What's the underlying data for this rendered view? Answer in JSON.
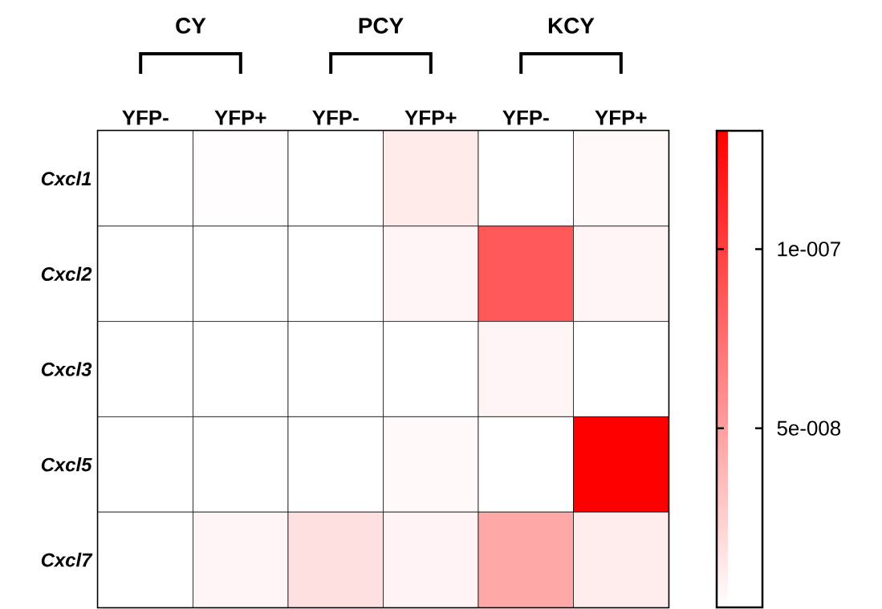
{
  "chart_data": {
    "type": "heatmap",
    "annotations": [
      "CY",
      "PCY",
      "KCY"
    ],
    "categories": [
      "YFP-",
      "YFP+",
      "YFP-",
      "YFP+",
      "YFP-",
      "YFP+"
    ],
    "y_categories": [
      "Cxcl1",
      "Cxcl2",
      "Cxcl3",
      "Cxcl5",
      "Cxcl7"
    ],
    "cells": [
      [
        0,
        1e-09,
        0,
        1.1e-08,
        0,
        3e-09
      ],
      [
        0,
        0,
        0,
        5e-09,
        8.6e-08,
        5e-09
      ],
      [
        0,
        0,
        0,
        0,
        5e-09,
        0
      ],
      [
        0,
        0,
        0,
        3e-09,
        0,
        1.33e-07
      ],
      [
        0,
        5e-09,
        1.6e-08,
        6e-09,
        4.5e-08,
        1e-08
      ]
    ],
    "clim": [
      0,
      1.33e-07
    ],
    "cticks": [
      {
        "value": 1e-07,
        "label": "1e-007"
      },
      {
        "value": 5e-08,
        "label": "5e-008"
      }
    ]
  }
}
